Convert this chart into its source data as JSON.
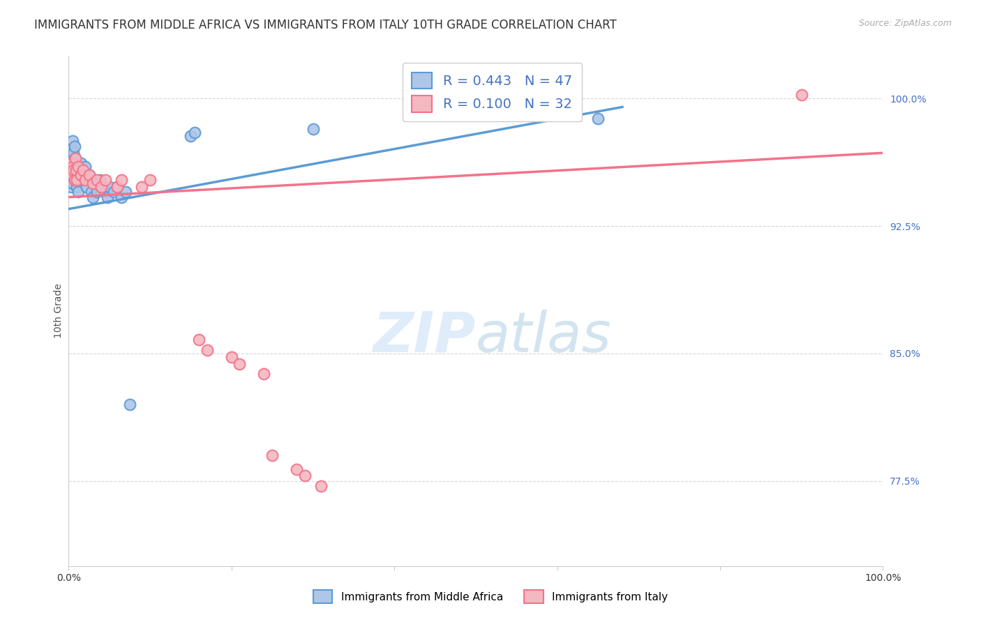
{
  "title": "IMMIGRANTS FROM MIDDLE AFRICA VS IMMIGRANTS FROM ITALY 10TH GRADE CORRELATION CHART",
  "source_text": "Source: ZipAtlas.com",
  "ylabel": "10th Grade",
  "ytick_labels": [
    "77.5%",
    "85.0%",
    "92.5%",
    "100.0%"
  ],
  "ytick_values": [
    0.775,
    0.85,
    0.925,
    1.0
  ],
  "xlim": [
    0.0,
    1.0
  ],
  "ylim": [
    0.725,
    1.025
  ],
  "legend_line1": "R = 0.443   N = 47",
  "legend_line2": "R = 0.100   N = 32",
  "watermark_zip": "ZIP",
  "watermark_atlas": "atlas",
  "blue_color": "#5b9bd5",
  "pink_color": "#f4728a",
  "blue_fill": "#aec6e8",
  "pink_fill": "#f4b8c1",
  "blue_scatter": [
    [
      0.002,
      0.955
    ],
    [
      0.002,
      0.96
    ],
    [
      0.002,
      0.958
    ],
    [
      0.003,
      0.965
    ],
    [
      0.003,
      0.952
    ],
    [
      0.003,
      0.948
    ],
    [
      0.004,
      0.97
    ],
    [
      0.004,
      0.962
    ],
    [
      0.005,
      0.975
    ],
    [
      0.005,
      0.958
    ],
    [
      0.005,
      0.95
    ],
    [
      0.006,
      0.968
    ],
    [
      0.006,
      0.96
    ],
    [
      0.007,
      0.972
    ],
    [
      0.007,
      0.955
    ],
    [
      0.008,
      0.965
    ],
    [
      0.008,
      0.958
    ],
    [
      0.009,
      0.952
    ],
    [
      0.01,
      0.96
    ],
    [
      0.01,
      0.948
    ],
    [
      0.012,
      0.945
    ],
    [
      0.013,
      0.958
    ],
    [
      0.015,
      0.962
    ],
    [
      0.016,
      0.955
    ],
    [
      0.018,
      0.952
    ],
    [
      0.02,
      0.96
    ],
    [
      0.022,
      0.948
    ],
    [
      0.025,
      0.955
    ],
    [
      0.028,
      0.945
    ],
    [
      0.03,
      0.942
    ],
    [
      0.032,
      0.95
    ],
    [
      0.035,
      0.945
    ],
    [
      0.038,
      0.952
    ],
    [
      0.04,
      0.948
    ],
    [
      0.045,
      0.945
    ],
    [
      0.048,
      0.942
    ],
    [
      0.05,
      0.948
    ],
    [
      0.055,
      0.945
    ],
    [
      0.06,
      0.948
    ],
    [
      0.065,
      0.942
    ],
    [
      0.07,
      0.945
    ],
    [
      0.075,
      0.82
    ],
    [
      0.15,
      0.978
    ],
    [
      0.155,
      0.98
    ],
    [
      0.3,
      0.982
    ],
    [
      0.62,
      0.992
    ],
    [
      0.65,
      0.988
    ]
  ],
  "pink_scatter": [
    [
      0.002,
      0.958
    ],
    [
      0.003,
      0.962
    ],
    [
      0.004,
      0.955
    ],
    [
      0.005,
      0.96
    ],
    [
      0.006,
      0.958
    ],
    [
      0.007,
      0.952
    ],
    [
      0.008,
      0.965
    ],
    [
      0.009,
      0.958
    ],
    [
      0.01,
      0.952
    ],
    [
      0.012,
      0.96
    ],
    [
      0.015,
      0.955
    ],
    [
      0.018,
      0.958
    ],
    [
      0.02,
      0.952
    ],
    [
      0.025,
      0.955
    ],
    [
      0.03,
      0.95
    ],
    [
      0.035,
      0.952
    ],
    [
      0.04,
      0.948
    ],
    [
      0.045,
      0.952
    ],
    [
      0.06,
      0.948
    ],
    [
      0.065,
      0.952
    ],
    [
      0.09,
      0.948
    ],
    [
      0.1,
      0.952
    ],
    [
      0.16,
      0.858
    ],
    [
      0.17,
      0.852
    ],
    [
      0.2,
      0.848
    ],
    [
      0.21,
      0.844
    ],
    [
      0.24,
      0.838
    ],
    [
      0.25,
      0.79
    ],
    [
      0.28,
      0.782
    ],
    [
      0.29,
      0.778
    ],
    [
      0.31,
      0.772
    ],
    [
      0.9,
      1.002
    ]
  ],
  "blue_line_x": [
    0.0,
    0.68
  ],
  "blue_line_y": [
    0.935,
    0.995
  ],
  "pink_line_x": [
    0.0,
    1.0
  ],
  "pink_line_y": [
    0.942,
    0.968
  ],
  "grid_color": "#cccccc",
  "title_fontsize": 12,
  "axis_label_fontsize": 10,
  "tick_fontsize": 10,
  "legend_fontsize": 14
}
